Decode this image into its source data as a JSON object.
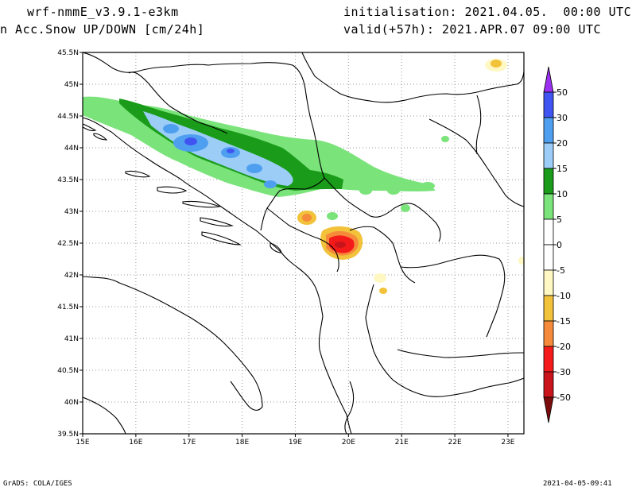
{
  "header": {
    "model": "wrf-nmmE_v3.9.1-e3km",
    "field": "n Acc.Snow UP/DOWN [cm/24h]",
    "init": "initialisation: 2021.04.05.  00:00 UTC",
    "valid": "valid(+57h): 2021.APR.07 09:00 UTC"
  },
  "map": {
    "lon_labels": [
      "15E",
      "16E",
      "17E",
      "18E",
      "19E",
      "20E",
      "21E",
      "22E",
      "23E"
    ],
    "lat_labels": [
      "45.5N",
      "45N",
      "44.5N",
      "44N",
      "43.5N",
      "43N",
      "42.5N",
      "42N",
      "41.5N",
      "41N",
      "40.5N",
      "40N",
      "39.5N"
    ],
    "lon_range": [
      15,
      23.3
    ],
    "lat_range": [
      39.5,
      45.5
    ],
    "grid": "dotted"
  },
  "colorbar": {
    "labels": [
      "50",
      "30",
      "20",
      "15",
      "10",
      "5",
      "0",
      "-5",
      "-10",
      "-15",
      "-20",
      "-30",
      "-50"
    ],
    "colors": [
      "#7b2cf5",
      "#3f54f0",
      "#4f9ff0",
      "#9bcdf7",
      "#1a9c1a",
      "#7ae37a",
      "#ffffff",
      "#ffffff",
      "#fff8c2",
      "#f2c23a",
      "#f58a3a",
      "#f51a1a",
      "#c8141a",
      "#96100f"
    ],
    "top_arrow_color": "#9b30f0",
    "bottom_arrow_color": "#7a0c0c"
  },
  "footer": {
    "left": "GrADS: COLA/IGES",
    "right": "2021-04-05-09:41"
  }
}
